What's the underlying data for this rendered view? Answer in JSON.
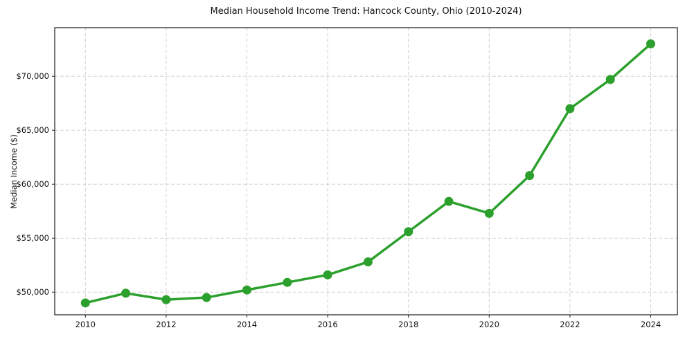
{
  "chart_data": {
    "type": "line",
    "title": "Median Household Income Trend: Hancock County, Ohio (2010-2024)",
    "ylabel": "Median Income ($)",
    "xlabel": "",
    "x": [
      2010,
      2011,
      2012,
      2013,
      2014,
      2015,
      2016,
      2017,
      2018,
      2019,
      2020,
      2021,
      2022,
      2023,
      2024
    ],
    "values": [
      49000,
      49900,
      49300,
      49500,
      50200,
      50900,
      51600,
      52800,
      55600,
      58400,
      57300,
      60800,
      67000,
      69700,
      73000
    ],
    "series_name": "Median Household Income",
    "xticks": [
      2010,
      2012,
      2014,
      2016,
      2018,
      2020,
      2022,
      2024
    ],
    "yticks": [
      50000,
      55000,
      60000,
      65000,
      70000
    ],
    "ytick_labels": [
      "$50,000",
      "$55,000",
      "$60,000",
      "$65,000",
      "$70,000"
    ],
    "xlim": [
      2009.24,
      2024.66
    ],
    "ylim": [
      47900,
      74500
    ],
    "grid": true,
    "grid_style": "dashed",
    "legend_position": "none",
    "colors": {
      "line": "#2ca02c",
      "marker": "#2ca02c",
      "grid": "#d0d0d0",
      "spine": "#1a1a1a",
      "tick": "#1a1a1a",
      "background": "#ffffff"
    }
  }
}
